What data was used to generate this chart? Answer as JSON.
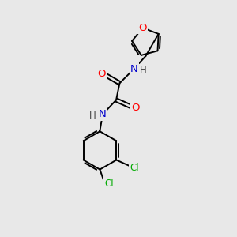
{
  "background_color": "#e8e8e8",
  "bond_color": "#000000",
  "atom_colors": {
    "O": "#ff0000",
    "N": "#0000cc",
    "Cl": "#00aa00",
    "C": "#000000",
    "H": "#555555"
  },
  "figsize": [
    3.0,
    3.0
  ],
  "dpi": 100,
  "lw": 1.4,
  "fs": 8.5
}
